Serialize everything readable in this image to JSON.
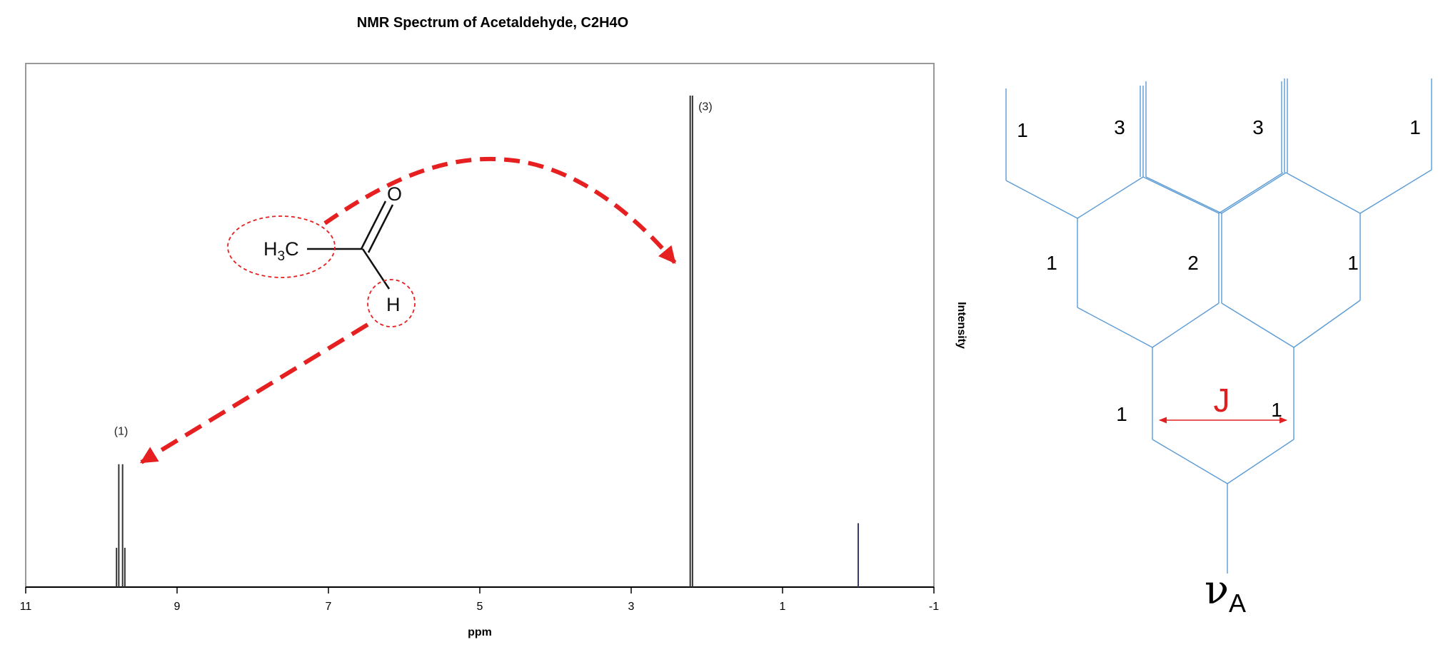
{
  "chart_data": {
    "type": "line",
    "title": "NMR Spectrum of Acetaldehyde, C2H4O",
    "xlabel": "ppm",
    "ylabel": "Intensity",
    "xlim": [
      11,
      -1
    ],
    "x_reversed": true,
    "ylim": [
      0,
      1
    ],
    "x_ticks": [
      11,
      9,
      7,
      5,
      3,
      1,
      -1
    ],
    "peaks": [
      {
        "ppm": 9.8,
        "intensity": 0.08
      },
      {
        "ppm": 9.77,
        "intensity": 0.25
      },
      {
        "ppm": 9.72,
        "intensity": 0.25
      },
      {
        "ppm": 9.69,
        "intensity": 0.08
      },
      {
        "ppm": 2.22,
        "intensity": 1.0
      },
      {
        "ppm": 2.19,
        "intensity": 1.0
      },
      {
        "ppm": 0.0,
        "intensity": 0.13,
        "color": "#3a3a6e"
      }
    ],
    "peak_labels": [
      {
        "text": "(1)",
        "ppm": 9.74,
        "intensity": 0.31
      },
      {
        "text": "(3)",
        "ppm": 2.02,
        "intensity": 0.97
      }
    ],
    "grid": false
  },
  "molecule": {
    "methyl_main": "H",
    "methyl_sub": "3",
    "methyl_end": "C",
    "oxygen": "O",
    "aldehyde_h": "H"
  },
  "splitting_tree": {
    "top_numbers": [
      "1",
      "3",
      "3",
      "1"
    ],
    "middle_numbers": [
      "1",
      "2",
      "1"
    ],
    "bottom_numbers": [
      "1",
      "1"
    ],
    "coupling_label": "J",
    "base_symbol": "ν",
    "base_subscript": "A"
  },
  "colors": {
    "arrow": "#e62020",
    "tree_lines": "#5b9bd5",
    "frame": "#999999",
    "tms_peak": "#3a3a6e"
  }
}
